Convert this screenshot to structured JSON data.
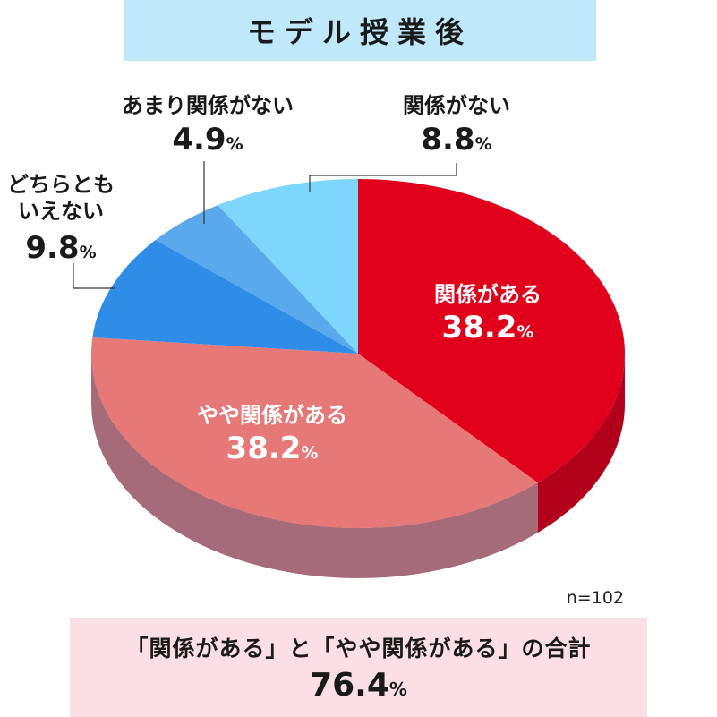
{
  "title": "モデル授業後",
  "sample_size": "n=102",
  "summary": {
    "label": "「関係がある」と「やや関係がある」の合計",
    "value": "76.4",
    "unit": "%"
  },
  "chart_data": {
    "type": "pie",
    "title": "モデル授業後",
    "unit": "%",
    "slices": [
      {
        "label": "関係がある",
        "value": 38.2,
        "color": "#e0001b",
        "side_color": "#b3001a"
      },
      {
        "label": "やや関係がある",
        "value": 38.2,
        "color": "#e67877",
        "side_color": "#a56b79"
      },
      {
        "label": "どちらとも\nいえない",
        "value": 9.8,
        "color": "#2f8de8",
        "side_color": "#2a6fb8"
      },
      {
        "label": "あまり関係がない",
        "value": 4.9,
        "color": "#5aa9ec",
        "side_color": "#4a8ac4"
      },
      {
        "label": "関係がない",
        "value": 8.8,
        "color": "#7dd6fb",
        "side_color": "#5fb0d3"
      }
    ],
    "start": "12 o'clock",
    "direction": "clockwise",
    "style": "3d-tilted"
  }
}
